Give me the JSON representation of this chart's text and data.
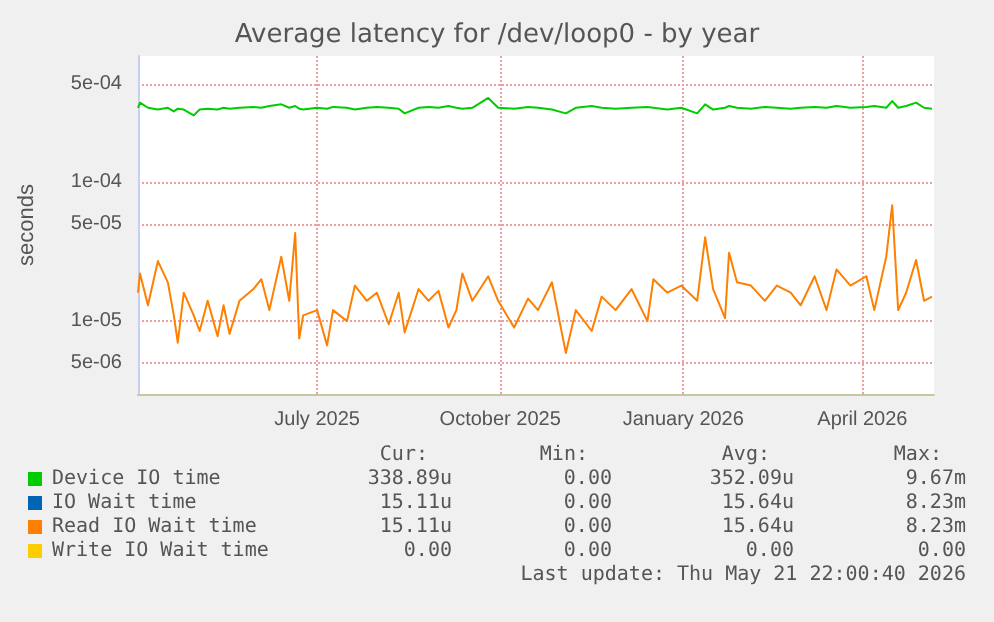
{
  "chart_data": {
    "type": "line",
    "title": "Average latency for /dev/loop0 - by year",
    "ylabel": "seconds",
    "log": "y",
    "grid": true,
    "legend": "bottom",
    "marker": "none",
    "line_style": "solid",
    "xlim": [
      "2025-04-02",
      "2026-05-07"
    ],
    "xticks": [
      {
        "value": "2025-07-01",
        "label": "July 2025"
      },
      {
        "value": "2025-10-01",
        "label": "October 2025"
      },
      {
        "value": "2026-01-01",
        "label": "January 2026"
      },
      {
        "value": "2026-04-01",
        "label": "April 2026"
      }
    ],
    "ylim": [
      3e-06,
      0.0008
    ],
    "yticks": [
      {
        "value": 5e-06,
        "label": "5e-06"
      },
      {
        "value": 1e-05,
        "label": "1e-05"
      },
      {
        "value": 5e-05,
        "label": "5e-05"
      },
      {
        "value": 0.0001,
        "label": "1e-04"
      },
      {
        "value": 0.0005,
        "label": "5e-04"
      }
    ],
    "x": [
      "2025-04-02",
      "2025-04-03",
      "2025-04-07",
      "2025-04-12",
      "2025-04-17",
      "2025-04-20",
      "2025-04-22",
      "2025-04-25",
      "2025-04-30",
      "2025-05-03",
      "2025-05-07",
      "2025-05-12",
      "2025-05-15",
      "2025-05-18",
      "2025-05-23",
      "2025-05-30",
      "2025-06-03",
      "2025-06-07",
      "2025-06-13",
      "2025-06-17",
      "2025-06-20",
      "2025-06-22",
      "2025-06-24",
      "2025-07-01",
      "2025-07-06",
      "2025-07-09",
      "2025-07-16",
      "2025-07-20",
      "2025-07-26",
      "2025-07-31",
      "2025-08-06",
      "2025-08-11",
      "2025-08-14",
      "2025-08-21",
      "2025-08-26",
      "2025-08-31",
      "2025-09-05",
      "2025-09-09",
      "2025-09-12",
      "2025-09-17",
      "2025-09-25",
      "2025-09-30",
      "2025-10-08",
      "2025-10-15",
      "2025-10-20",
      "2025-10-27",
      "2025-11-03",
      "2025-11-08",
      "2025-11-16",
      "2025-11-21",
      "2025-11-28",
      "2025-12-06",
      "2025-12-14",
      "2025-12-17",
      "2025-12-24",
      "2025-12-31",
      "2026-01-08",
      "2026-01-12",
      "2026-01-16",
      "2026-01-22",
      "2026-01-24",
      "2026-01-28",
      "2026-02-04",
      "2026-02-11",
      "2026-02-17",
      "2026-02-24",
      "2026-03-01",
      "2026-03-08",
      "2026-03-14",
      "2026-03-19",
      "2026-03-26",
      "2026-04-03",
      "2026-04-07",
      "2026-04-13",
      "2026-04-16",
      "2026-04-19",
      "2026-04-23",
      "2026-04-28",
      "2026-05-02",
      "2026-05-06"
    ],
    "series": [
      {
        "name": "Device IO time",
        "color": "#00cc00",
        "values": [
          0.00034,
          0.00037,
          0.00034,
          0.00033,
          0.00034,
          0.00032,
          0.000335,
          0.00033,
          0.0003,
          0.00033,
          0.000335,
          0.00033,
          0.00034,
          0.000335,
          0.00034,
          0.000345,
          0.00034,
          0.00035,
          0.00036,
          0.00034,
          0.00035,
          0.000335,
          0.00033,
          0.00034,
          0.000335,
          0.000345,
          0.00034,
          0.00033,
          0.00034,
          0.000345,
          0.00034,
          0.000335,
          0.00031,
          0.00034,
          0.000345,
          0.00034,
          0.00035,
          0.00034,
          0.000335,
          0.00034,
          0.0004,
          0.00034,
          0.000335,
          0.000345,
          0.00034,
          0.00033,
          0.00031,
          0.00034,
          0.00035,
          0.00034,
          0.000335,
          0.00034,
          0.000345,
          0.00034,
          0.00033,
          0.00034,
          0.00031,
          0.00036,
          0.00033,
          0.00034,
          0.00035,
          0.00034,
          0.000335,
          0.000345,
          0.00034,
          0.000335,
          0.00034,
          0.000345,
          0.00034,
          0.00035,
          0.00034,
          0.000345,
          0.00035,
          0.00034,
          0.00038,
          0.00034,
          0.00035,
          0.00037,
          0.00034,
          0.000335
        ]
      },
      {
        "name": "IO Wait time",
        "color": "#0066b3",
        "values": [
          null,
          null,
          null,
          null,
          null,
          null,
          null,
          null,
          null,
          null,
          null,
          null,
          null,
          null,
          null,
          null,
          null,
          null,
          null,
          null,
          null,
          null,
          null,
          null,
          null,
          null,
          null,
          null,
          null,
          null,
          null,
          null,
          null,
          null,
          null,
          null,
          null,
          null,
          null,
          null,
          null,
          null,
          null,
          null,
          null,
          null,
          null,
          null,
          null,
          null,
          null,
          null,
          null,
          null,
          null,
          null,
          null,
          null,
          null,
          null,
          null,
          null,
          null,
          null,
          null,
          null,
          null,
          null,
          null,
          null,
          null,
          null,
          null,
          null,
          null,
          null,
          null,
          null,
          null,
          null
        ]
      },
      {
        "name": "Read IO Wait time",
        "color": "#ff8000",
        "values": [
          1.6e-05,
          2.2e-05,
          1.3e-05,
          2.7e-05,
          1.9e-05,
          1.1e-05,
          7e-06,
          1.6e-05,
          1.1e-05,
          8.5e-06,
          1.4e-05,
          7.8e-06,
          1.3e-05,
          8.1e-06,
          1.4e-05,
          1.7e-05,
          2e-05,
          1.2e-05,
          2.9e-05,
          1.4e-05,
          4.3e-05,
          7.5e-06,
          1.1e-05,
          1.2e-05,
          6.7e-06,
          1.2e-05,
          1e-05,
          1.8e-05,
          1.4e-05,
          1.6e-05,
          9.5e-06,
          1.6e-05,
          8.3e-06,
          1.7e-05,
          1.4e-05,
          1.65e-05,
          9e-06,
          1.2e-05,
          2.2e-05,
          1.4e-05,
          2.1e-05,
          1.4e-05,
          9e-06,
          1.45e-05,
          1.2e-05,
          1.9e-05,
          5.9e-06,
          1.2e-05,
          8.5e-06,
          1.5e-05,
          1.2e-05,
          1.7e-05,
          1e-05,
          2e-05,
          1.6e-05,
          1.8e-05,
          1.4e-05,
          4e-05,
          1.7e-05,
          1.05e-05,
          3.1e-05,
          1.9e-05,
          1.8e-05,
          1.4e-05,
          1.8e-05,
          1.6e-05,
          1.3e-05,
          2.1e-05,
          1.2e-05,
          2.35e-05,
          1.8e-05,
          2.1e-05,
          1.2e-05,
          2.9e-05,
          6.8e-05,
          1.2e-05,
          1.6e-05,
          2.75e-05,
          1.4e-05,
          1.5e-05
        ]
      },
      {
        "name": "Write IO Wait time",
        "color": "#ffcc00",
        "values": [
          null,
          null,
          null,
          null,
          null,
          null,
          null,
          null,
          null,
          null,
          null,
          null,
          null,
          null,
          null,
          null,
          null,
          null,
          null,
          null,
          null,
          null,
          null,
          null,
          null,
          null,
          null,
          null,
          null,
          null,
          null,
          null,
          null,
          null,
          null,
          null,
          null,
          null,
          null,
          null,
          null,
          null,
          null,
          null,
          null,
          null,
          null,
          null,
          null,
          null,
          null,
          null,
          null,
          null,
          null,
          null,
          null,
          null,
          null,
          null,
          null,
          null,
          null,
          null,
          null,
          null,
          null,
          null,
          null,
          null,
          null,
          null,
          null,
          null,
          null,
          null,
          null,
          null,
          null,
          null
        ]
      }
    ],
    "annotations": [
      "Cur:",
      "Min:",
      "Avg:",
      "Max:",
      "338.89u",
      "0.00",
      "352.09u",
      "9.67m",
      "15.11u",
      "0.00",
      "15.64u",
      "8.23m",
      "15.11u",
      "0.00",
      "15.64u",
      "8.23m",
      "0.00",
      "0.00",
      "0.00",
      "0.00",
      "Last update: Thu May 21 22:00:40 2026"
    ]
  }
}
